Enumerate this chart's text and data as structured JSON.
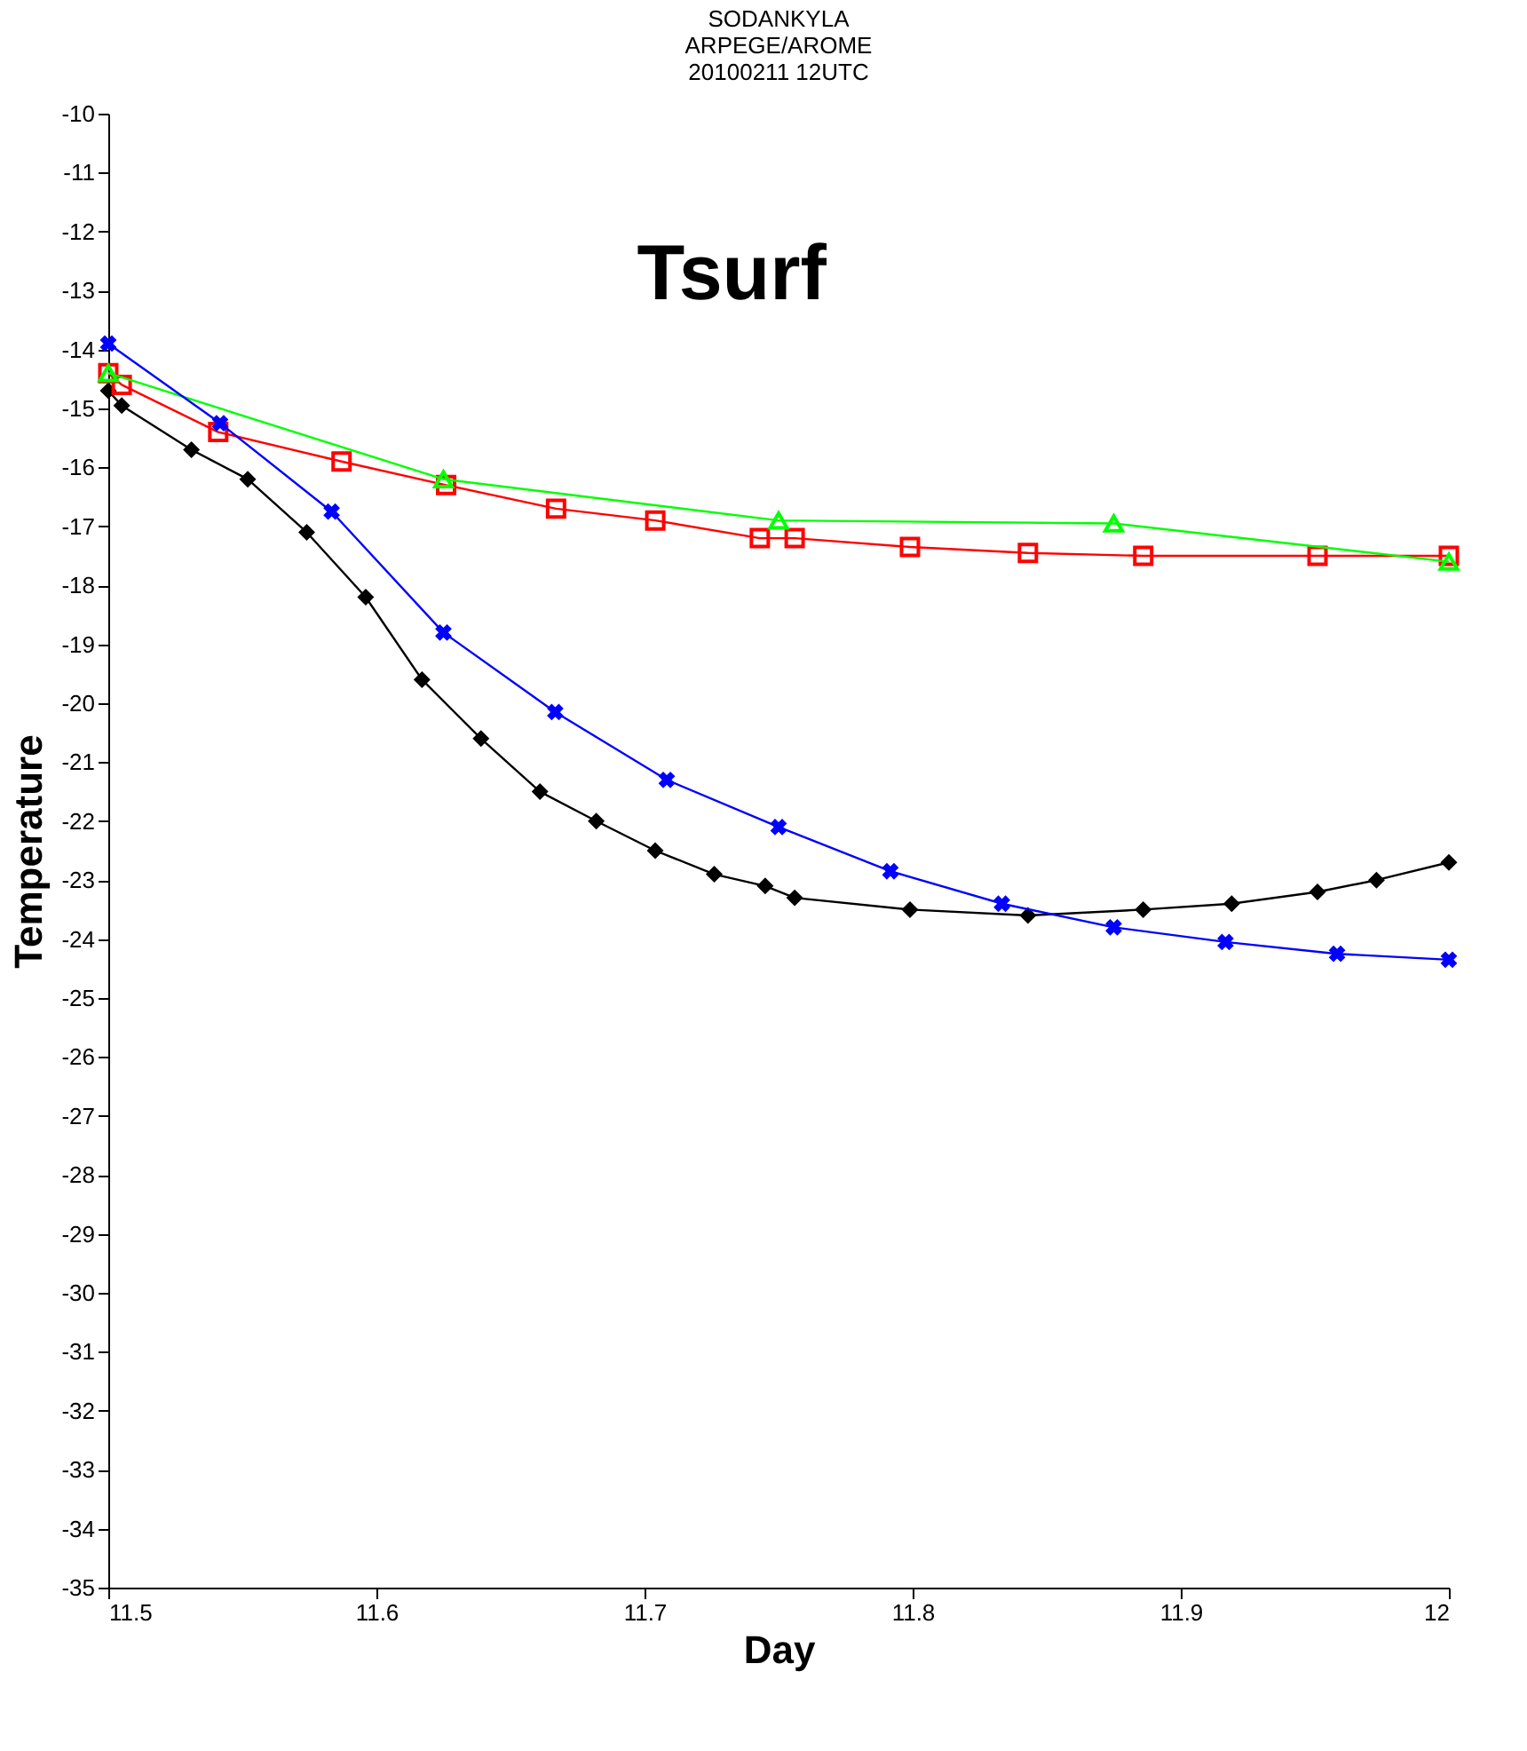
{
  "chart_data": {
    "type": "line",
    "title": "SODANKYLA\nARPEGE/AROME\n20100211 12UTC",
    "xlabel": "Day",
    "ylabel": "Temperature",
    "annotations": [
      "Tsurf"
    ],
    "xlim": [
      11.5,
      12
    ],
    "xticks": [
      11.5,
      11.6,
      11.7,
      11.8,
      11.9,
      12
    ],
    "ylim": [
      -35,
      -10
    ],
    "yticks": [
      -35,
      -34,
      -33,
      -32,
      -31,
      -30,
      -29,
      -28,
      -27,
      -26,
      -25,
      -24,
      -23,
      -22,
      -21,
      -20,
      -19,
      -18,
      -17,
      -16,
      -15,
      -14,
      -13,
      -12,
      -11,
      -10
    ],
    "grid": false,
    "series": [
      {
        "color": "#000000",
        "marker": "diamond",
        "x": [
          11.5,
          11.505,
          11.531,
          11.552,
          11.574,
          11.596,
          11.617,
          11.639,
          11.661,
          11.682,
          11.704,
          11.726,
          11.745,
          11.756,
          11.799,
          11.843,
          11.886,
          11.919,
          11.951,
          11.973,
          12.0
        ],
        "values": [
          -14.7,
          -14.95,
          -15.7,
          -16.2,
          -17.1,
          -18.2,
          -19.6,
          -20.6,
          -21.5,
          -22.0,
          -22.5,
          -22.9,
          -23.1,
          -23.3,
          -23.5,
          -23.6,
          -23.5,
          -23.4,
          -23.2,
          -23.0,
          -22.7
        ]
      },
      {
        "color": "#ff0000",
        "marker": "square",
        "x": [
          11.5,
          11.505,
          11.541,
          11.587,
          11.626,
          11.667,
          11.704,
          11.743,
          11.756,
          11.799,
          11.843,
          11.886,
          11.951,
          12.0
        ],
        "values": [
          -14.4,
          -14.6,
          -15.4,
          -15.9,
          -16.3,
          -16.7,
          -16.9,
          -17.2,
          -17.2,
          -17.35,
          -17.45,
          -17.5,
          -17.5,
          -17.5
        ]
      },
      {
        "color": "#00ff00",
        "marker": "triangle",
        "x": [
          11.5,
          11.625,
          11.75,
          11.875,
          12.0
        ],
        "values": [
          -14.4,
          -16.2,
          -16.9,
          -16.95,
          -17.6
        ]
      },
      {
        "color": "#0000ff",
        "marker": "cross",
        "x": [
          11.5,
          11.5417,
          11.5833,
          11.625,
          11.6667,
          11.7083,
          11.75,
          11.7917,
          11.8333,
          11.875,
          11.9167,
          11.9583,
          12.0
        ],
        "values": [
          -13.9,
          -15.25,
          -16.75,
          -18.8,
          -20.15,
          -21.3,
          -22.1,
          -22.85,
          -23.4,
          -23.8,
          -24.05,
          -24.25,
          -24.35
        ]
      }
    ]
  }
}
